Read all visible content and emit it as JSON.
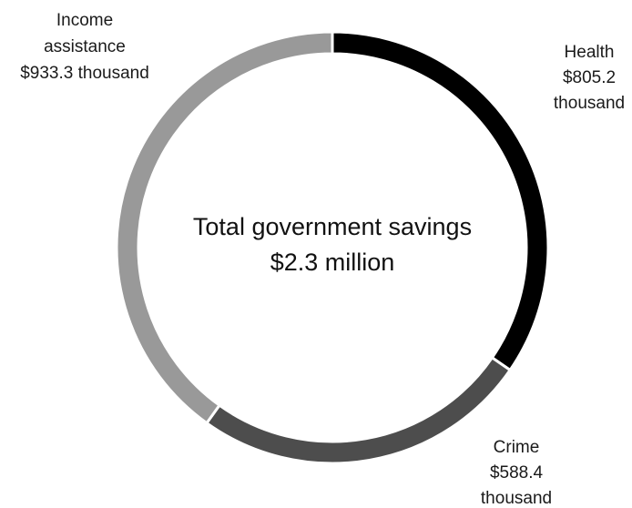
{
  "chart_data": {
    "type": "donut",
    "center_text": [
      "Total government savings",
      "$2.3 million"
    ],
    "slices": [
      {
        "name": "Health",
        "value_label": [
          "$805.2",
          "thousand"
        ],
        "value": 805.2,
        "color": "#000000"
      },
      {
        "name": "Crime",
        "value_label": [
          "$588.4",
          "thousand"
        ],
        "value": 588.4,
        "color": "#4d4d4d"
      },
      {
        "name": "Income",
        "value_label": [
          "assistance",
          "$933.3 thousand"
        ],
        "value": 933.3,
        "color": "#999999"
      }
    ],
    "units": "$ thousand",
    "legend": "none"
  }
}
